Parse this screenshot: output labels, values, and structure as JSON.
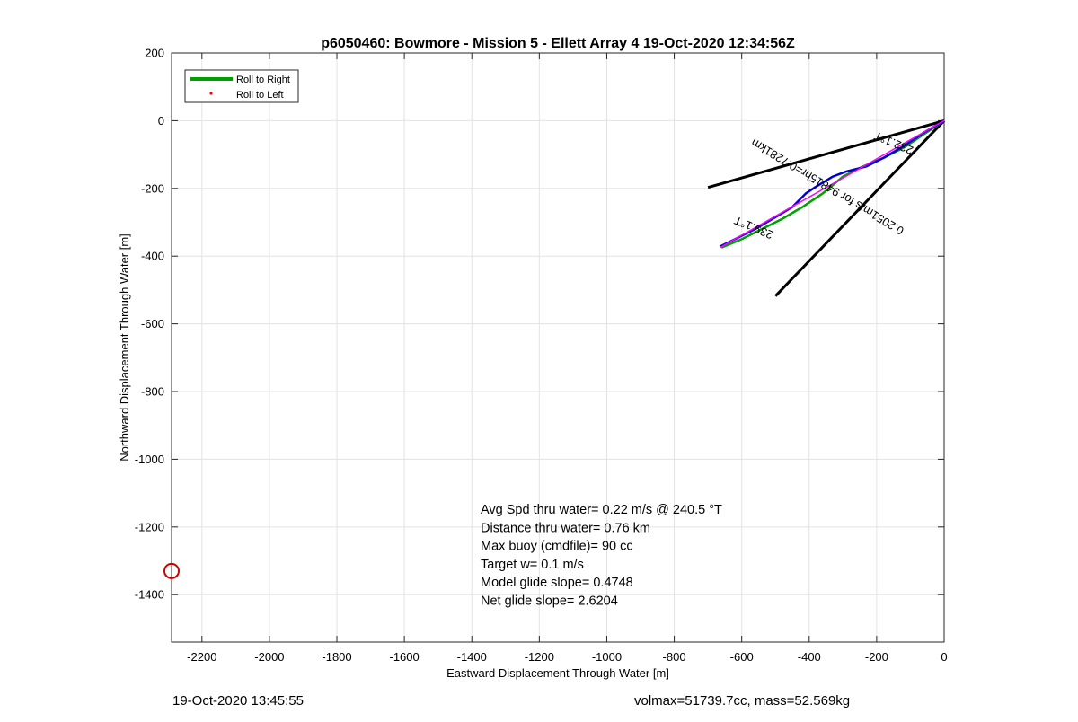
{
  "chart_data": {
    "type": "line",
    "title": "p6050460: Bowmore - Mission 5 - Ellett Array 4 19-Oct-2020 12:34:56Z",
    "xlabel": "Eastward Displacement Through Water [m]",
    "ylabel": "Northward Displacement Through Water [m]",
    "xlim": [
      -2290,
      0
    ],
    "ylim": [
      -1540,
      200
    ],
    "xticks": [
      -2200,
      -2000,
      -1800,
      -1600,
      -1400,
      -1200,
      -1000,
      -800,
      -600,
      -400,
      -200,
      0
    ],
    "yticks": [
      200,
      0,
      -200,
      -400,
      -600,
      -800,
      -1000,
      -1200,
      -1400
    ],
    "grid": true,
    "legend": {
      "position": "top-left",
      "entries": [
        {
          "label": "Roll to Right",
          "color": "#00a000",
          "style": "line"
        },
        {
          "label": "Roll to Left",
          "color": "#ff0000",
          "style": "dot"
        }
      ]
    },
    "series": [
      {
        "name": "Roll to Right",
        "color": "#00a000",
        "x": [
          0,
          -60,
          -120,
          -180,
          -240,
          -300,
          -360,
          -420,
          -480,
          -540,
          -600,
          -660
        ],
        "y": [
          0,
          -40,
          -80,
          -110,
          -135,
          -165,
          -215,
          -255,
          -290,
          -320,
          -350,
          -375
        ]
      },
      {
        "color": "#0000cc",
        "x": [
          0,
          -60,
          -120,
          -180,
          -230,
          -290,
          -330,
          -380,
          -410,
          -450,
          -500,
          -560,
          -620,
          -665
        ],
        "y": [
          0,
          -35,
          -75,
          -110,
          -135,
          -150,
          -165,
          -195,
          -215,
          -255,
          -285,
          -320,
          -350,
          -372
        ]
      },
      {
        "color": "#ff00ff",
        "x": [
          0,
          -665
        ],
        "y": [
          0,
          -375
        ]
      }
    ],
    "cone_lines": [
      {
        "color": "#000000",
        "x": [
          0,
          -700
        ],
        "y": [
          0,
          -197
        ]
      },
      {
        "color": "#000000",
        "x": [
          0,
          -500
        ],
        "y": [
          0,
          -518
        ]
      }
    ],
    "marker": {
      "color": "#cc0000",
      "shape": "circle",
      "x": -2290,
      "y": -1330
    },
    "rotated_labels": [
      {
        "text": "0.2051m/s for 94815hr=0.7281km",
        "x": -340,
        "y": -185,
        "angle": 211
      },
      {
        "text": "239.1°T",
        "x": -560,
        "y": -305,
        "angle": 203
      },
      {
        "text": "232.1°T",
        "x": -145,
        "y": -55,
        "angle": 203
      }
    ],
    "annotations": [
      "Avg Spd thru water=  0.22 m/s @ 240.5 °T",
      "Distance thru water=  0.76 km",
      "Max buoy (cmdfile)= 90 cc",
      "Target w= 0.1 m/s",
      "Model glide slope= 0.4748",
      "Net glide slope= 2.6204"
    ]
  },
  "footer": {
    "left": "19-Oct-2020 13:45:55",
    "right": "volmax=51739.7cc, mass=52.569kg"
  }
}
